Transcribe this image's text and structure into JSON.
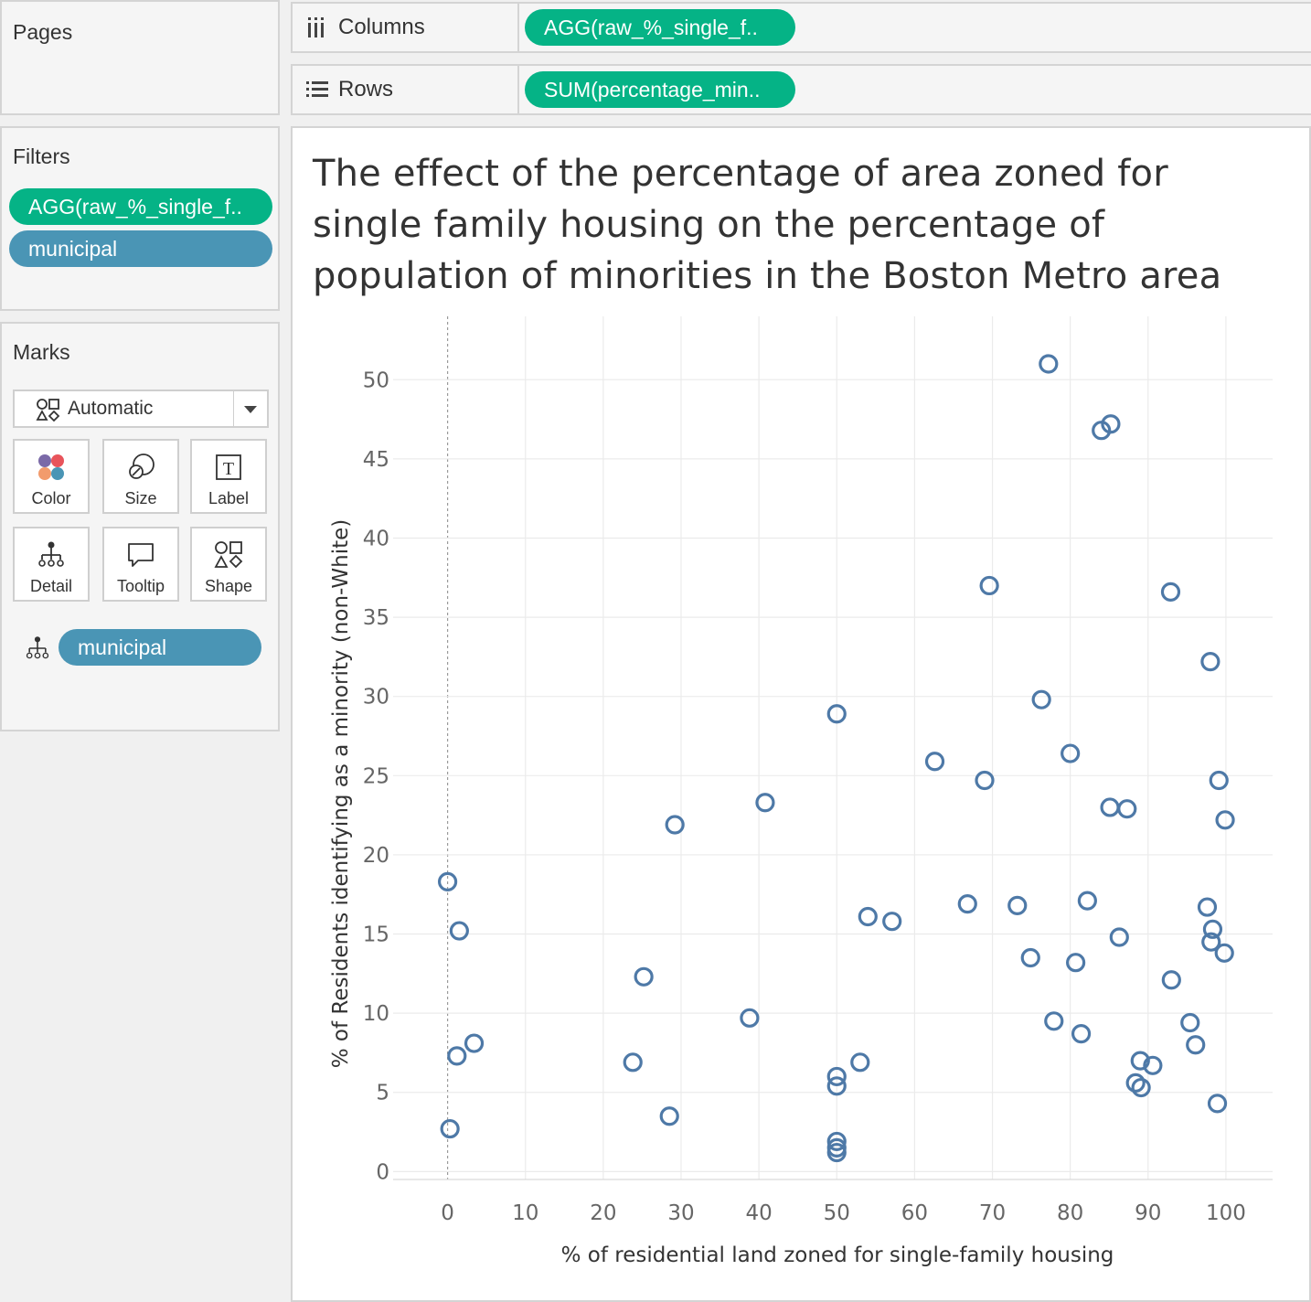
{
  "pages": {
    "title": "Pages"
  },
  "filters": {
    "title": "Filters",
    "items": [
      {
        "label": "AGG(raw_%_single_f..",
        "color": "#05b386"
      },
      {
        "label": "municipal",
        "color": "#4a95b5"
      }
    ]
  },
  "marks": {
    "title": "Marks",
    "type_label": "Automatic",
    "buttons": [
      {
        "label": "Color",
        "icon": "color-icon"
      },
      {
        "label": "Size",
        "icon": "size-icon"
      },
      {
        "label": "Label",
        "icon": "label-icon"
      },
      {
        "label": "Detail",
        "icon": "detail-icon"
      },
      {
        "label": "Tooltip",
        "icon": "tooltip-icon"
      },
      {
        "label": "Shape",
        "icon": "shape-icon"
      }
    ],
    "detail_pill": "municipal"
  },
  "shelves": {
    "columns": {
      "label": "Columns",
      "pill": "AGG(raw_%_single_f.."
    },
    "rows": {
      "label": "Rows",
      "pill": "SUM(percentage_min.."
    }
  },
  "viz": {
    "title": "The effect of the percentage of area zoned for single family housing on the percentage of population of minorities in the Boston Metro area"
  },
  "chart_data": {
    "type": "scatter",
    "title": "The effect of the percentage of area zoned for single family housing on the percentage of population of minorities in the Boston Metro area",
    "xlabel": "% of residential land zoned for single-family housing",
    "ylabel": "% of Residents identifying as a minority (non-White)",
    "xlim": [
      -7,
      106
    ],
    "ylim": [
      -0.5,
      54
    ],
    "xticks": [
      0,
      10,
      20,
      30,
      40,
      50,
      60,
      70,
      80,
      90,
      100
    ],
    "yticks": [
      0,
      5,
      10,
      15,
      20,
      25,
      30,
      35,
      40,
      45,
      50
    ],
    "grid": true,
    "marker_color": "#4e79a7",
    "marker": "open-circle",
    "points": [
      [
        0,
        18.3
      ],
      [
        1.5,
        15.2
      ],
      [
        0.3,
        2.7
      ],
      [
        1.2,
        7.3
      ],
      [
        3.4,
        8.1
      ],
      [
        23.8,
        6.9
      ],
      [
        25.2,
        12.3
      ],
      [
        28.5,
        3.5
      ],
      [
        29.2,
        21.9
      ],
      [
        38.8,
        9.7
      ],
      [
        40.8,
        23.3
      ],
      [
        50,
        28.9
      ],
      [
        50,
        6.0
      ],
      [
        50,
        5.4
      ],
      [
        50,
        1.9
      ],
      [
        50,
        1.5
      ],
      [
        50,
        1.2
      ],
      [
        53,
        6.9
      ],
      [
        54,
        16.1
      ],
      [
        57.1,
        15.8
      ],
      [
        62.6,
        25.9
      ],
      [
        66.8,
        16.9
      ],
      [
        69,
        24.7
      ],
      [
        69.6,
        37.0
      ],
      [
        73.2,
        16.8
      ],
      [
        74.9,
        13.5
      ],
      [
        76.3,
        29.8
      ],
      [
        77.2,
        51.0
      ],
      [
        77.9,
        9.5
      ],
      [
        80,
        26.4
      ],
      [
        80.7,
        13.2
      ],
      [
        81.4,
        8.7
      ],
      [
        82.2,
        17.1
      ],
      [
        84,
        46.8
      ],
      [
        85.2,
        47.2
      ],
      [
        85.1,
        23.0
      ],
      [
        86.3,
        14.8
      ],
      [
        87.3,
        22.9
      ],
      [
        88.4,
        5.6
      ],
      [
        89,
        7.0
      ],
      [
        89.1,
        5.3
      ],
      [
        90.6,
        6.7
      ],
      [
        92.9,
        36.6
      ],
      [
        93,
        12.1
      ],
      [
        95.4,
        9.4
      ],
      [
        96.1,
        8.0
      ],
      [
        97.6,
        16.7
      ],
      [
        98,
        32.2
      ],
      [
        98.1,
        14.5
      ],
      [
        98.3,
        15.3
      ],
      [
        98.9,
        4.3
      ],
      [
        99.1,
        24.7
      ],
      [
        99.8,
        13.8
      ],
      [
        99.9,
        22.2
      ]
    ]
  }
}
